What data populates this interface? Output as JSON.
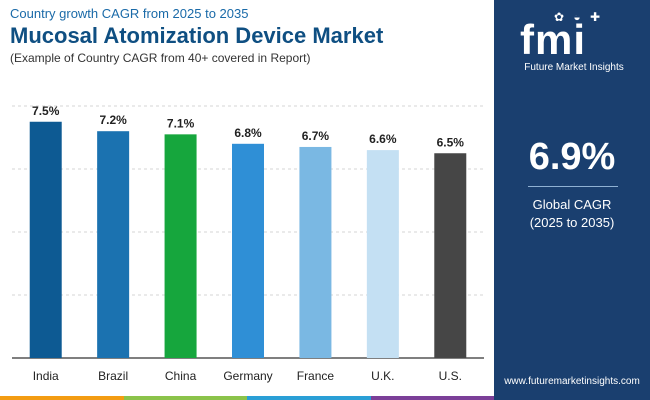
{
  "header": {
    "subtitle": "Country growth CAGR from 2025 to 2035",
    "title": "Mucosal Atomization Device Market",
    "note": "(Example of Country CAGR from 40+ covered in Report)"
  },
  "chart_data": {
    "type": "bar",
    "categories": [
      "India",
      "Brazil",
      "China",
      "Germany",
      "France",
      "U.K.",
      "U.S."
    ],
    "values": [
      7.5,
      7.2,
      7.1,
      6.8,
      6.7,
      6.6,
      6.5
    ],
    "labels": [
      "7.5%",
      "7.2%",
      "7.1%",
      "6.8%",
      "6.7%",
      "6.6%",
      "6.5%"
    ],
    "colors": [
      "#0d5a93",
      "#1b72b0",
      "#16a63d",
      "#2f8fd6",
      "#7ab8e3",
      "#c4e0f3",
      "#464646"
    ],
    "ylim": [
      0,
      8
    ],
    "grid": true,
    "title": "",
    "xlabel": "",
    "ylabel": ""
  },
  "panel": {
    "logo_text": "fmi",
    "logo_caption": "Future Market Insights",
    "cagr_value": "6.9%",
    "cagr_label": "Global CAGR",
    "cagr_period": "(2025 to 2035)",
    "website": "www.futuremarketinsights.com",
    "background": "#1a3f6f"
  },
  "accent_colors": [
    "#f39c12",
    "#8bc34a",
    "#2a9fd6",
    "#7b3f98"
  ]
}
